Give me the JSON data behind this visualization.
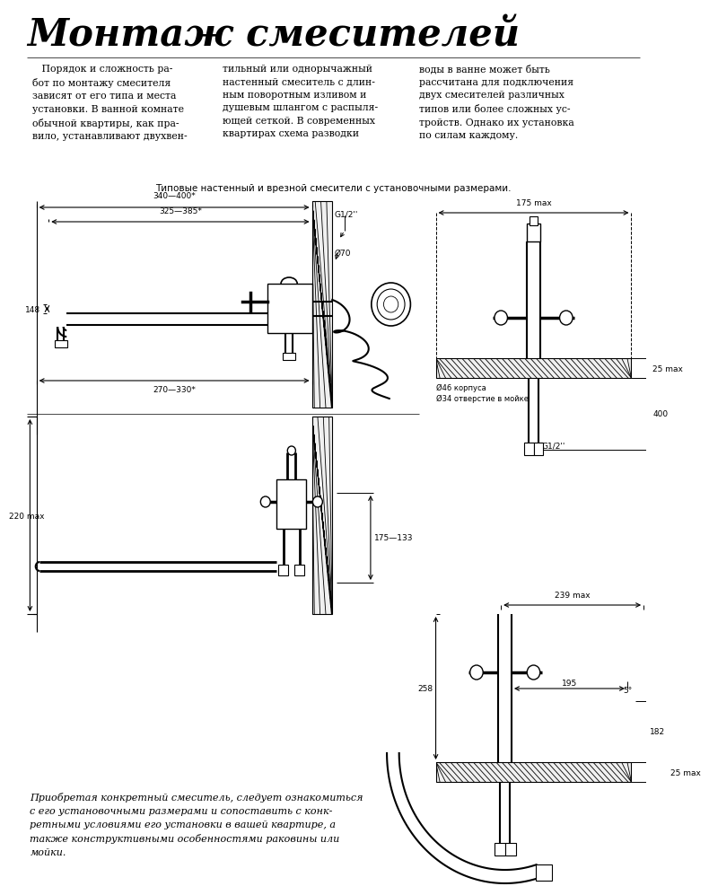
{
  "title": "Монтаж смесителей",
  "bg_color": "#ffffff",
  "line_color": "#000000",
  "para1_col1": "   Порядок и сложность ра-\nбот по монтажу смесителя\nзависят от его типа и места\nустановки. В ванной комнате\nобычной квартиры, как пра-\nвило, устанавливают двухвен-",
  "para1_col2": "тильный или однорычажный\nнастенный смеситель с длин-\nным поворотным изливом и\nдушевым шлангом с распыля-\nющей сеткой. В современных\nквартирах схема разводки",
  "para1_col3": "воды в ванне может быть\nрассчитана для подключения\nдвух смесителей различных\nтипов или более сложных ус-\nтройств. Однако их установка\nпо силам каждому.",
  "caption": "Типовые настенный и врезной смесители с установочными размерами.",
  "bottom_text": "Приобретая конкретный смеситель, следует ознакомиться\nс его установочными размерами и сопоставить с конк-\nретными условиями его установки в вашей квартире, а\nтакже конструктивными особенностями раковины или\nмойки.",
  "dim_340_400": "340—400*",
  "dim_325_385": "325—385*",
  "dim_148": "148",
  "dim_270_330": "270—330*",
  "dim_220": "220 max",
  "dim_175_133": "175—133",
  "dim_175_max": "175 max",
  "dim_25_max_top": "25 max",
  "dim_25_max_bot": "25 max",
  "dim_400": "400",
  "dim_g12_top": "G1/2''",
  "dim_70": "Ø70",
  "dim_46": "Ø46 корпуса",
  "dim_34": "Ø34 отверстие в мойке",
  "dim_g12_bot": "G1/2''",
  "dim_239": "239 max",
  "dim_5": "5°",
  "dim_258": "258",
  "dim_195": "195",
  "dim_182": "182"
}
